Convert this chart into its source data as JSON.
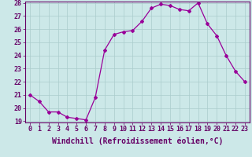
{
  "x": [
    0,
    1,
    2,
    3,
    4,
    5,
    6,
    7,
    8,
    9,
    10,
    11,
    12,
    13,
    14,
    15,
    16,
    17,
    18,
    19,
    20,
    21,
    22,
    23
  ],
  "y": [
    21.0,
    20.5,
    19.7,
    19.7,
    19.3,
    19.2,
    19.1,
    20.8,
    24.4,
    25.6,
    25.8,
    25.9,
    26.6,
    27.6,
    27.9,
    27.8,
    27.5,
    27.4,
    28.0,
    26.4,
    25.5,
    24.0,
    22.8,
    22.0
  ],
  "line_color": "#990099",
  "marker": "D",
  "marker_size": 2.0,
  "bg_color": "#cce8e8",
  "grid_color": "#aacccc",
  "xlabel": "Windchill (Refroidissement éolien,°C)",
  "xlabel_fontsize": 7,
  "tick_fontsize": 6,
  "ylim": [
    19,
    28
  ],
  "xlim": [
    -0.5,
    23.5
  ],
  "yticks": [
    19,
    20,
    21,
    22,
    23,
    24,
    25,
    26,
    27,
    28
  ],
  "xticks": [
    0,
    1,
    2,
    3,
    4,
    5,
    6,
    7,
    8,
    9,
    10,
    11,
    12,
    13,
    14,
    15,
    16,
    17,
    18,
    19,
    20,
    21,
    22,
    23
  ],
  "spine_color": "#660066",
  "text_color": "#660066"
}
